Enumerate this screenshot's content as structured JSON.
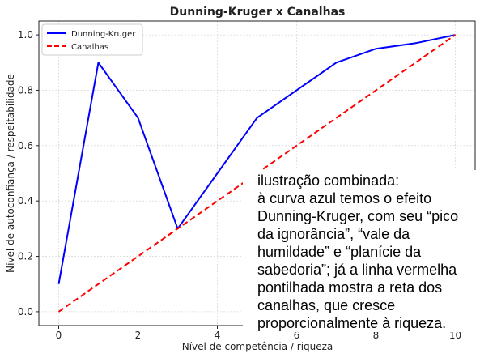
{
  "chart_data": {
    "type": "line",
    "title": "Dunning-Kruger x Canalhas",
    "xlabel": "Nível de competência / riqueza",
    "ylabel": "Nível de autoconfiança / respeitabilidade",
    "xlim": [
      -0.5,
      10.5
    ],
    "ylim": [
      -0.05,
      1.05
    ],
    "xticks": [
      0,
      2,
      4,
      6,
      8,
      10
    ],
    "yticks": [
      0.0,
      0.2,
      0.4,
      0.6,
      0.8,
      1.0
    ],
    "xtick_labels": [
      "0",
      "2",
      "4",
      "6",
      "8",
      "10"
    ],
    "ytick_labels": [
      "0.0",
      "0.2",
      "0.4",
      "0.6",
      "0.8",
      "1.0"
    ],
    "grid": true,
    "legend_position": "top-left",
    "series": [
      {
        "name": "Dunning-Kruger",
        "color": "#0000ff",
        "style": "solid",
        "x": [
          0,
          1,
          2,
          3,
          5,
          7,
          8,
          9,
          10
        ],
        "y": [
          0.1,
          0.9,
          0.7,
          0.3,
          0.7,
          0.9,
          0.95,
          0.97,
          1.0
        ]
      },
      {
        "name": "Canalhas",
        "color": "#ff0000",
        "style": "dashed",
        "x": [
          0,
          10
        ],
        "y": [
          0.0,
          1.0
        ]
      }
    ]
  },
  "annotation": {
    "text": "ilustração combinada:\nà curva azul temos o efeito\nDunning-Kruger, com seu “pico\nda ignorância”, “vale da\nhumildade” e “planície da\nsabedoria”; já a linha vermelha\npontilhada mostra a reta dos\ncanalhas, que cresce\nproporcionalmente à riqueza."
  }
}
